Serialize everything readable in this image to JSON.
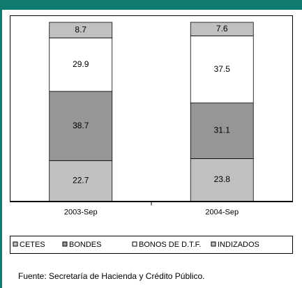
{
  "chart_data": {
    "type": "stacked_bar",
    "categories": [
      "2003-Sep",
      "2004-Sep"
    ],
    "series": [
      {
        "name": "CETES",
        "color": "#c0c0c0",
        "values": [
          22.7,
          23.8
        ]
      },
      {
        "name": "BONDES",
        "color": "#969696",
        "values": [
          38.7,
          31.1
        ]
      },
      {
        "name": "BONOS DE D.T.F.",
        "color": "#ffffff",
        "values": [
          29.9,
          37.5
        ]
      },
      {
        "name": "INDIZADOS",
        "color": "#c0c0c0",
        "values": [
          8.7,
          7.6
        ]
      }
    ],
    "ylim": [
      0,
      100
    ],
    "legend": "bottom",
    "source": "Fuente: Secretaría de Hacienda y Crédito Público."
  }
}
